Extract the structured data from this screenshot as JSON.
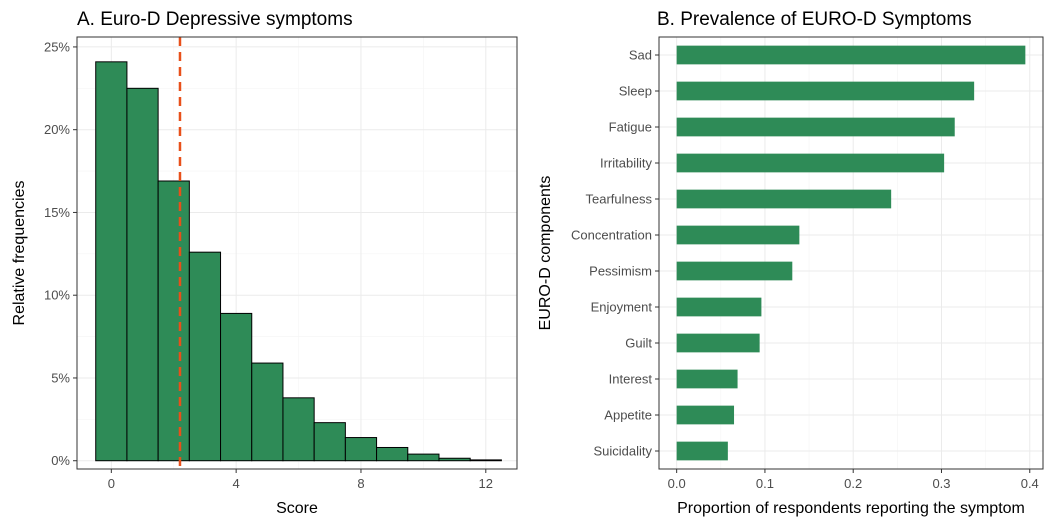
{
  "colors": {
    "bar_fill": "#2e8b57",
    "bar_stroke": "#000000",
    "mean_line": "#e8501a"
  },
  "chart_data": [
    {
      "type": "bar",
      "title": "A. Euro-D Depressive symptoms",
      "xlabel": "Score",
      "ylabel": "Relative frequencies",
      "x_ticks": [
        "0",
        "4",
        "8",
        "12"
      ],
      "y_ticks": [
        "0%",
        "5%",
        "10%",
        "15%",
        "20%",
        "25%"
      ],
      "xlim": [
        -1.1,
        13.0
      ],
      "ylim": [
        -0.5,
        25.6
      ],
      "categories": [
        0,
        1,
        2,
        3,
        4,
        5,
        6,
        7,
        8,
        9,
        10,
        11,
        12
      ],
      "values": [
        24.1,
        22.5,
        16.9,
        12.6,
        8.9,
        5.9,
        3.8,
        2.3,
        1.4,
        0.8,
        0.4,
        0.15,
        0.05
      ],
      "value_unit": "percent",
      "reference_line": {
        "x": 2.2,
        "style": "dashed"
      },
      "grid": true
    },
    {
      "type": "bar",
      "orientation": "horizontal",
      "title": "B. Prevalence of EURO-D Symptoms",
      "xlabel": "Proportion of respondents reporting the symptom",
      "ylabel": "EURO-D components",
      "x_ticks": [
        "0.0",
        "0.1",
        "0.2",
        "0.3",
        "0.4"
      ],
      "xlim": [
        -0.02,
        0.415
      ],
      "categories": [
        "Sad",
        "Sleep",
        "Fatigue",
        "Irritability",
        "Tearfulness",
        "Concentration",
        "Pessimism",
        "Enjoyment",
        "Guilt",
        "Interest",
        "Appetite",
        "Suicidality"
      ],
      "values": [
        0.395,
        0.337,
        0.315,
        0.303,
        0.243,
        0.139,
        0.131,
        0.096,
        0.094,
        0.069,
        0.065,
        0.058
      ],
      "grid": true
    }
  ]
}
